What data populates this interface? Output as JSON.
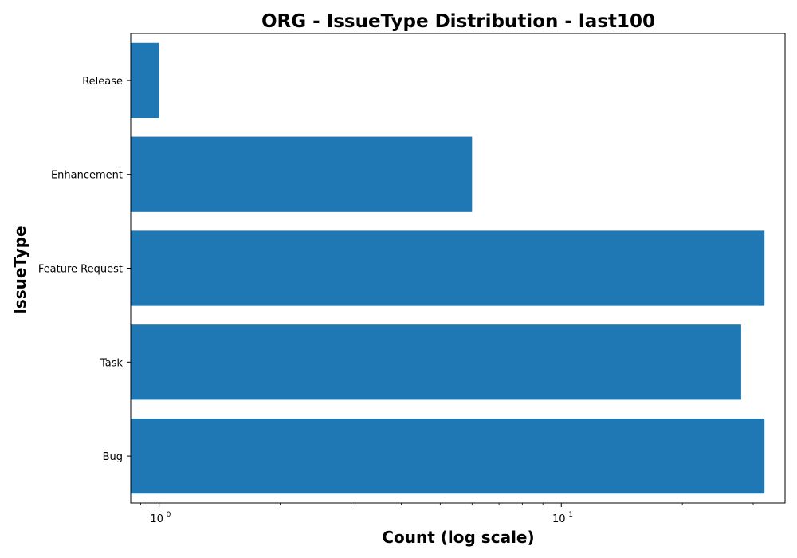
{
  "chart_data": {
    "type": "bar",
    "orientation": "horizontal",
    "title": "ORG - IssueType Distribution - last100",
    "xlabel": "Count (log scale)",
    "ylabel": "IssueType",
    "xscale": "log",
    "xlim": [
      0.85,
      36
    ],
    "x_tick_labels": [
      {
        "value": 1,
        "base": "10",
        "exp": "0"
      },
      {
        "value": 10,
        "base": "10",
        "exp": "1"
      }
    ],
    "categories": [
      "Bug",
      "Task",
      "Feature Request",
      "Enhancement",
      "Release"
    ],
    "values": [
      32,
      28,
      32,
      6,
      1
    ],
    "bar_color": "#1f77b4",
    "grid": false,
    "legend": "none"
  }
}
